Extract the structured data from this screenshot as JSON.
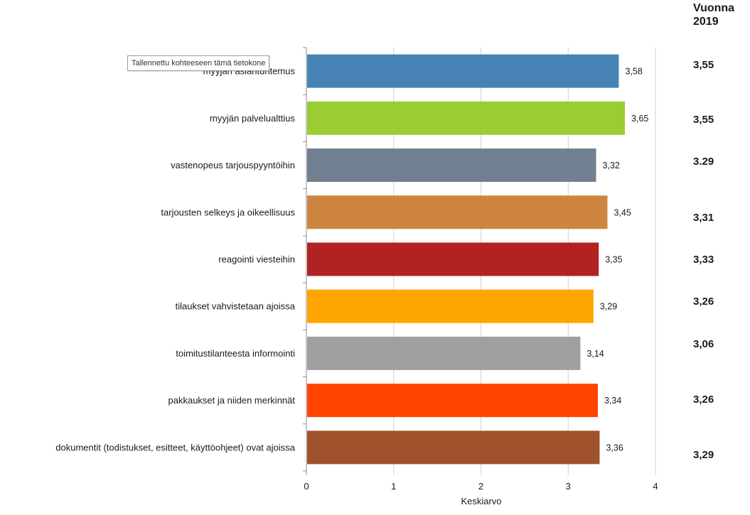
{
  "chart_data": {
    "type": "bar",
    "orientation": "horizontal",
    "categories": [
      "myyjän asiantuntemus",
      "myyjän palvelualttius",
      "vastenopeus tarjouspyyntöihin",
      "tarjousten selkeys ja oikeellisuus",
      "reagointi viesteihin",
      "tilaukset vahvistetaan ajoissa",
      "toimitustilanteesta informointi",
      "pakkaukset ja niiden merkinnät",
      "dokumentit (todistukset, esitteet, käyttöohjeet) ovat ajoissa"
    ],
    "values": [
      3.58,
      3.65,
      3.32,
      3.45,
      3.35,
      3.29,
      3.14,
      3.34,
      3.36
    ],
    "value_labels": [
      "3,58",
      "3,65",
      "3,32",
      "3,45",
      "3,35",
      "3,29",
      "3,14",
      "3,34",
      "3,36"
    ],
    "colors": [
      "#4682b4",
      "#9acd32",
      "#708090",
      "#cd853f",
      "#b22222",
      "#ffa500",
      "#a0a0a0",
      "#ff4500",
      "#a0522d"
    ],
    "xlabel": "Keskiarvo",
    "xlim": [
      0,
      4
    ],
    "xticks": [
      "0",
      "1",
      "2",
      "3",
      "4"
    ],
    "grid": true,
    "comparison": {
      "header": "Vuonna 2019",
      "values": [
        "3,55",
        "3,55",
        "3.29",
        "3,31",
        "3,33",
        "3,26",
        "3,06",
        "3,26",
        "3,29"
      ]
    }
  },
  "tooltip": "Tallennettu kohteeseen tämä tietokone"
}
